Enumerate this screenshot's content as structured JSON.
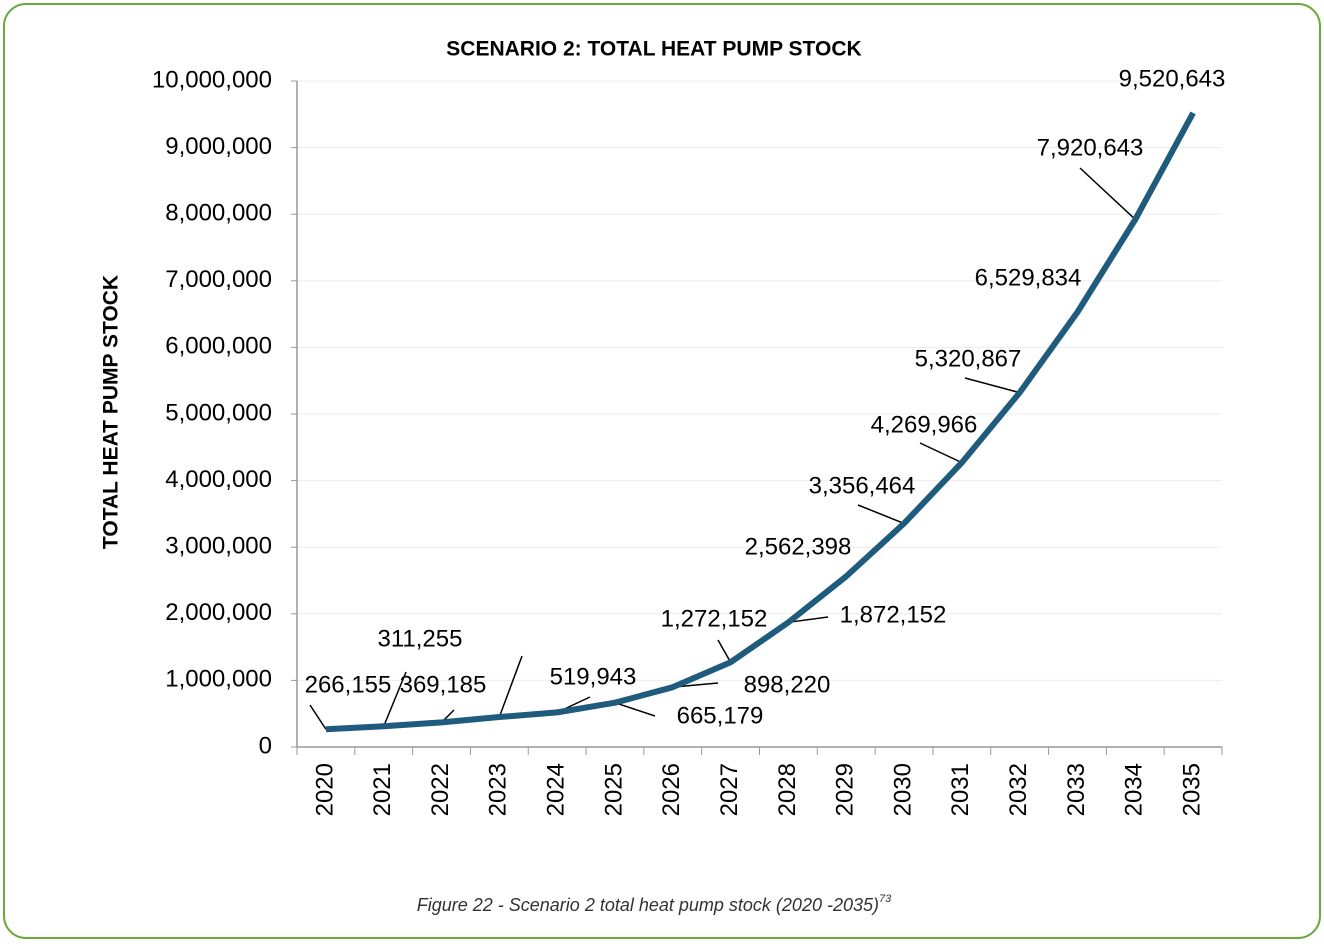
{
  "chart_data": {
    "type": "line",
    "title": "SCENARIO 2: TOTAL HEAT PUMP STOCK",
    "y_label": "TOTAL HEAT PUMP STOCK",
    "caption": "Figure 22 - Scenario 2 total heat pump stock (2020 -2035)",
    "footnote": "73",
    "categories": [
      "2020",
      "2021",
      "2022",
      "2023",
      "2024",
      "2025",
      "2026",
      "2027",
      "2028",
      "2029",
      "2030",
      "2031",
      "2032",
      "2033",
      "2034",
      "2035"
    ],
    "series": [
      {
        "name": "Total heat pump stock",
        "color": "#1f5b7c",
        "values": [
          266155,
          311255,
          369185,
          450000,
          519943,
          665179,
          898220,
          1272152,
          1872152,
          2562398,
          3356464,
          4269966,
          5320867,
          6529834,
          7920643,
          9520643
        ],
        "value_labels": [
          "266,155",
          "311,255",
          "369,185",
          null,
          "519,943",
          "665,179",
          "898,220",
          "1,272,152",
          "1,872,152",
          "2,562,398",
          "3,356,464",
          "4,269,966",
          "5,320,867",
          "6,529,834",
          "7,920,643",
          "9,520,643"
        ]
      }
    ],
    "ylim": [
      0,
      10000000
    ],
    "yticks": [
      0,
      {
        "value": 1000000,
        "label": "1,000,000"
      },
      {
        "value": 2000000,
        "label": "2,000,000"
      },
      {
        "value": 3000000,
        "label": "3,000,000"
      },
      {
        "value": 4000000,
        "label": "4,000,000"
      },
      {
        "value": 5000000,
        "label": "5,000,000"
      },
      {
        "value": 6000000,
        "label": "6,000,000"
      },
      {
        "value": 7000000,
        "label": "7,000,000"
      },
      {
        "value": 8000000,
        "label": "8,000,000"
      },
      {
        "value": 9000000,
        "label": "9,000,000"
      },
      {
        "value": 10000000,
        "label": "10,000,000"
      }
    ],
    "grid": true
  }
}
